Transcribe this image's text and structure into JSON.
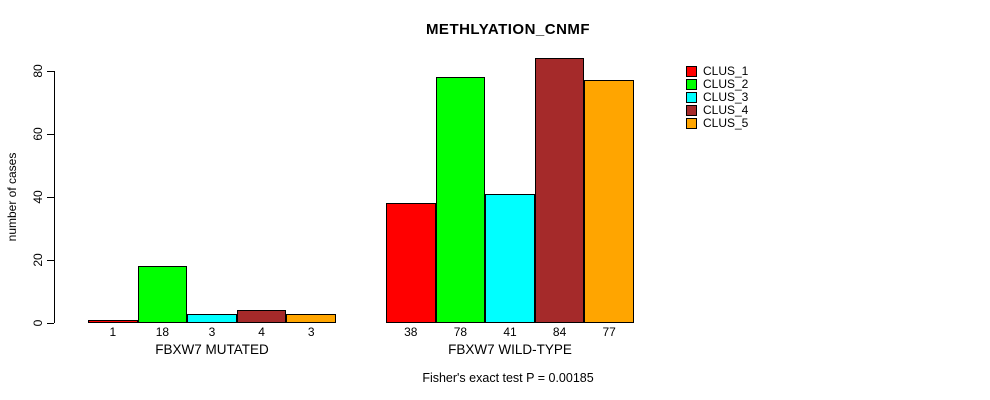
{
  "title": "METHLYATION_CNMF",
  "caption": "Fisher's exact test P = 0.00185",
  "y_axis": {
    "label": "number of cases",
    "ticks": [
      "0",
      "20",
      "40",
      "60",
      "80"
    ]
  },
  "legend": {
    "items": [
      {
        "label": "CLUS_1",
        "color": "#ff0000"
      },
      {
        "label": "CLUS_2",
        "color": "#00ff00"
      },
      {
        "label": "CLUS_3",
        "color": "#00ffff"
      },
      {
        "label": "CLUS_4",
        "color": "#a52a2a"
      },
      {
        "label": "CLUS_5",
        "color": "#ffa500"
      }
    ]
  },
  "chart_data": {
    "type": "bar",
    "title": "METHLYATION_CNMF",
    "xlabel": "",
    "ylabel": "number of cases",
    "ylim": [
      0,
      80
    ],
    "yticks": [
      0,
      20,
      40,
      60,
      80
    ],
    "grid": false,
    "legend_position": "right-outside-top",
    "bar_value_labels_shown": true,
    "categories": [
      "FBXW7 MUTATED",
      "FBXW7 WILD-TYPE"
    ],
    "series": [
      {
        "name": "CLUS_1",
        "color": "#ff0000",
        "values": [
          1,
          38
        ]
      },
      {
        "name": "CLUS_2",
        "color": "#00ff00",
        "values": [
          18,
          78
        ]
      },
      {
        "name": "CLUS_3",
        "color": "#00ffff",
        "values": [
          3,
          41
        ]
      },
      {
        "name": "CLUS_4",
        "color": "#a52a2a",
        "values": [
          4,
          84
        ]
      },
      {
        "name": "CLUS_5",
        "color": "#ffa500",
        "values": [
          3,
          77
        ]
      }
    ],
    "annotation": "Fisher's exact test P = 0.00185"
  }
}
